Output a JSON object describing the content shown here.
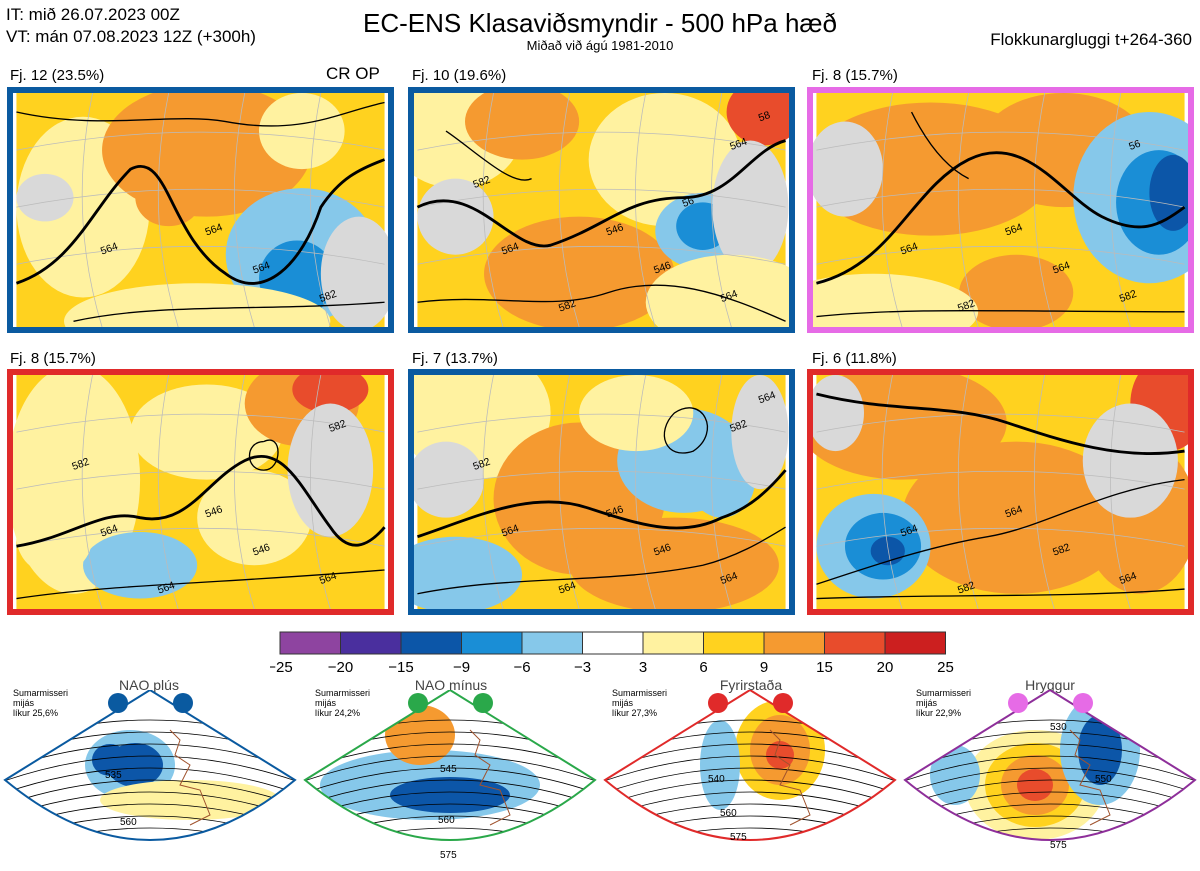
{
  "header": {
    "issue_time": "IT: mið 26.07.2023 00Z",
    "valid_time": "VT: mán 07.08.2023 12Z  (+300h)",
    "title": "EC-ENS Klasaviðsmyndir - 500 hPa hæð",
    "subtitle": "Miðað við ágú 1981-2010",
    "window": "Flokkunargluggi t+264-360"
  },
  "op_label": "CR OP",
  "colors": {
    "blue_frame": "#0a5aa0",
    "magenta_frame": "#e66be6",
    "red_frame": "#e02a2a",
    "green_frame": "#2aa84a",
    "purple_frame": "#8e2f9a"
  },
  "chart_data": [
    {
      "type": "heatmap",
      "title": "Fj. 12 (23.5%)",
      "frame_color": "#0a5aa0",
      "contour_labels": [
        "564",
        "564",
        "564",
        "582"
      ]
    },
    {
      "type": "heatmap",
      "title": "Fj. 10 (19.6%)",
      "frame_color": "#0a5aa0",
      "contour_labels": [
        "564",
        "546",
        "546",
        "564",
        "582",
        "564",
        "582",
        "58",
        "56"
      ]
    },
    {
      "type": "heatmap",
      "title": "Fj. 8 (15.7%)",
      "frame_color": "#e66be6",
      "contour_labels": [
        "564",
        "564",
        "564",
        "582",
        "582",
        "56"
      ]
    },
    {
      "type": "heatmap",
      "title": "Fj. 8 (15.7%)",
      "frame_color": "#e02a2a",
      "contour_labels": [
        "564",
        "546",
        "546",
        "564",
        "564",
        "582",
        "582"
      ]
    },
    {
      "type": "heatmap",
      "title": "Fj. 7 (13.7%)",
      "frame_color": "#0a5aa0",
      "contour_labels": [
        "564",
        "546",
        "546",
        "564",
        "564",
        "582",
        "582",
        "564"
      ]
    },
    {
      "type": "heatmap",
      "title": "Fj. 6 (11.8%)",
      "frame_color": "#e02a2a",
      "contour_labels": [
        "564",
        "564",
        "582",
        "564",
        "582"
      ]
    }
  ],
  "colorbar": {
    "ticks": [
      "−25",
      "−20",
      "−15",
      "−9",
      "−6",
      "−3",
      "3",
      "6",
      "9",
      "15",
      "20",
      "25"
    ],
    "colors": [
      "#8e44a0",
      "#4a2f9e",
      "#0c56a8",
      "#1a8ed6",
      "#86c8ea",
      "#ffffff",
      "#fff2a0",
      "#ffd21f",
      "#f59a30",
      "#e84c2c",
      "#cc1f1f"
    ]
  },
  "regimes": [
    {
      "name": "NAO plús",
      "text": [
        "Sumarmisseri",
        "mijás",
        "líkur 25,6%"
      ],
      "color": "#0a5aa0",
      "labels": [
        "535",
        "560"
      ]
    },
    {
      "name": "NAO mínus",
      "text": [
        "Sumarmisseri",
        "mijás",
        "líkur 24,2%"
      ],
      "color": "#2aa84a",
      "labels": [
        "545",
        "560",
        "575"
      ]
    },
    {
      "name": "Fyrirstaða",
      "text": [
        "Sumarmisseri",
        "mijás",
        "líkur 27,3%"
      ],
      "color": "#e02a2a",
      "labels": [
        "540",
        "560",
        "575"
      ]
    },
    {
      "name": "Hryggur",
      "text": [
        "Sumarmisseri",
        "mijás",
        "líkur 22,9%"
      ],
      "color": "#8e2f9a",
      "labels": [
        "530",
        "550",
        "575"
      ]
    }
  ]
}
